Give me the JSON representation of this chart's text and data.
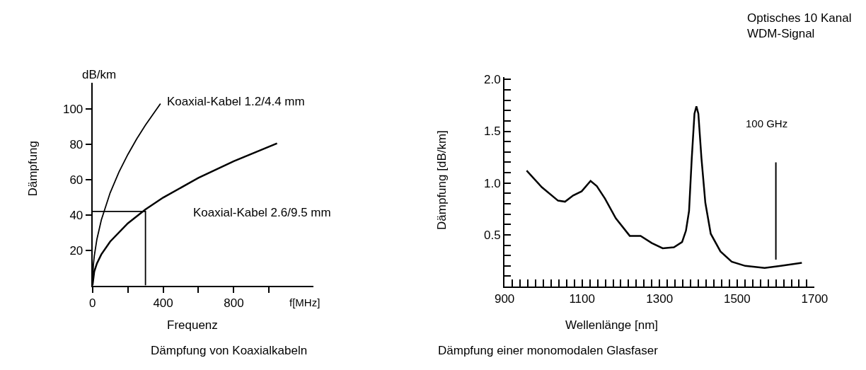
{
  "chart_data": [
    {
      "type": "line",
      "title": "Dämpfung von Koaxialkabeln",
      "xlabel": "Frequenz",
      "ylabel": "Dämpfung",
      "annotations": [
        "dB/km",
        "f[MHz]"
      ],
      "series": [
        {
          "name": "Koaxial-Kabel 1.2/4.4 mm",
          "color": "#000000",
          "x": [
            0,
            5,
            10,
            25,
            50,
            100,
            150,
            200,
            250,
            300,
            385
          ],
          "values": [
            0,
            11.7,
            16.6,
            26.2,
            37.1,
            52.5,
            64.3,
            74.2,
            83,
            90.9,
            103
          ]
        },
        {
          "name": "Koaxial-Kabel 2.6/9.5 mm",
          "color": "#000000",
          "x": [
            0,
            10,
            25,
            50,
            100,
            200,
            300,
            400,
            600,
            800,
            1045
          ],
          "values": [
            0,
            7.9,
            12.5,
            17.6,
            24.9,
            35.2,
            43.1,
            49.8,
            61,
            70.4,
            80.5
          ]
        },
        {
          "color": "#000000",
          "x": [
            0,
            300,
            300
          ],
          "values": [
            42,
            42,
            0
          ]
        }
      ],
      "xlim": [
        0,
        1250
      ],
      "ylim": [
        0,
        115
      ],
      "xticks": [
        0,
        {
          "value": 200,
          "label": null
        },
        400,
        {
          "value": 600,
          "label": null
        },
        800,
        {
          "value": 1000,
          "label": null
        }
      ],
      "yticks": [
        20,
        40,
        60,
        80,
        100
      ]
    },
    {
      "type": "line",
      "title": "Dämpfung einer monomodalen Glasfaser",
      "xlabel": "Wellenlänge [nm]",
      "ylabel": "Dämpfung [dB/km]",
      "annotations": [
        "Optisches 10 Kanal\nWDM-Signal",
        "100 GHz"
      ],
      "series": [
        {
          "color": "#000000",
          "x": [
            957,
            996,
            1038,
            1056,
            1077,
            1099,
            1122,
            1138,
            1159,
            1187,
            1223,
            1251,
            1280,
            1308,
            1337,
            1358,
            1368,
            1376,
            1383,
            1390,
            1395,
            1400,
            1408,
            1418,
            1432,
            1457,
            1486,
            1521,
            1571,
            1613,
            1667
          ],
          "values": [
            1.12,
            0.96,
            0.83,
            0.82,
            0.88,
            0.92,
            1.02,
            0.97,
            0.85,
            0.66,
            0.49,
            0.49,
            0.42,
            0.37,
            0.38,
            0.43,
            0.54,
            0.73,
            1.24,
            1.67,
            1.74,
            1.67,
            1.24,
            0.81,
            0.51,
            0.34,
            0.24,
            0.2,
            0.18,
            0.2,
            0.23
          ]
        }
      ],
      "ref_lines": [
        {
          "axis": "x",
          "value": 1600,
          "color": "#000000"
        }
      ],
      "xlim": [
        900,
        1700
      ],
      "ylim": [
        0,
        2.02
      ],
      "xticks": [
        900,
        {
          "value": 920,
          "label": null
        },
        {
          "value": 940,
          "label": null
        },
        {
          "value": 960,
          "label": null
        },
        {
          "value": 980,
          "label": null
        },
        {
          "value": 1000,
          "label": null
        },
        {
          "value": 1020,
          "label": null
        },
        {
          "value": 1040,
          "label": null
        },
        {
          "value": 1060,
          "label": null
        },
        {
          "value": 1080,
          "label": null
        },
        1100,
        {
          "value": 1120,
          "label": null
        },
        {
          "value": 1140,
          "label": null
        },
        {
          "value": 1160,
          "label": null
        },
        {
          "value": 1180,
          "label": null
        },
        {
          "value": 1200,
          "label": null
        },
        {
          "value": 1220,
          "label": null
        },
        {
          "value": 1240,
          "label": null
        },
        {
          "value": 1260,
          "label": null
        },
        {
          "value": 1280,
          "label": null
        },
        1300,
        {
          "value": 1320,
          "label": null
        },
        {
          "value": 1340,
          "label": null
        },
        {
          "value": 1360,
          "label": null
        },
        {
          "value": 1380,
          "label": null
        },
        {
          "value": 1400,
          "label": null
        },
        {
          "value": 1420,
          "label": null
        },
        {
          "value": 1440,
          "label": null
        },
        {
          "value": 1460,
          "label": null
        },
        {
          "value": 1480,
          "label": null
        },
        1500,
        {
          "value": 1520,
          "label": null
        },
        {
          "value": 1540,
          "label": null
        },
        {
          "value": 1560,
          "label": null
        },
        {
          "value": 1580,
          "label": null
        },
        {
          "value": 1600,
          "label": null
        },
        {
          "value": 1620,
          "label": null
        },
        {
          "value": 1640,
          "label": null
        },
        {
          "value": 1660,
          "label": null
        },
        {
          "value": 1680,
          "label": null
        },
        1700
      ],
      "yticks": [
        {
          "value": 0.1,
          "label": null
        },
        {
          "value": 0.2,
          "label": null
        },
        {
          "value": 0.3,
          "label": null
        },
        {
          "value": 0.4,
          "label": null
        },
        0.5,
        {
          "value": 0.6,
          "label": null
        },
        {
          "value": 0.7,
          "label": null
        },
        {
          "value": 0.8,
          "label": null
        },
        {
          "value": 0.9,
          "label": null
        },
        {
          "value": 1,
          "label": "1.0"
        },
        {
          "value": 1.1,
          "label": null
        },
        {
          "value": 1.2,
          "label": null
        },
        {
          "value": 1.3,
          "label": null
        },
        {
          "value": 1.4,
          "label": null
        },
        1.5,
        {
          "value": 1.6,
          "label": null
        },
        {
          "value": 1.7,
          "label": null
        },
        {
          "value": 1.8,
          "label": null
        },
        {
          "value": 1.9,
          "label": null
        },
        {
          "value": 2,
          "label": "2.0"
        }
      ]
    }
  ]
}
